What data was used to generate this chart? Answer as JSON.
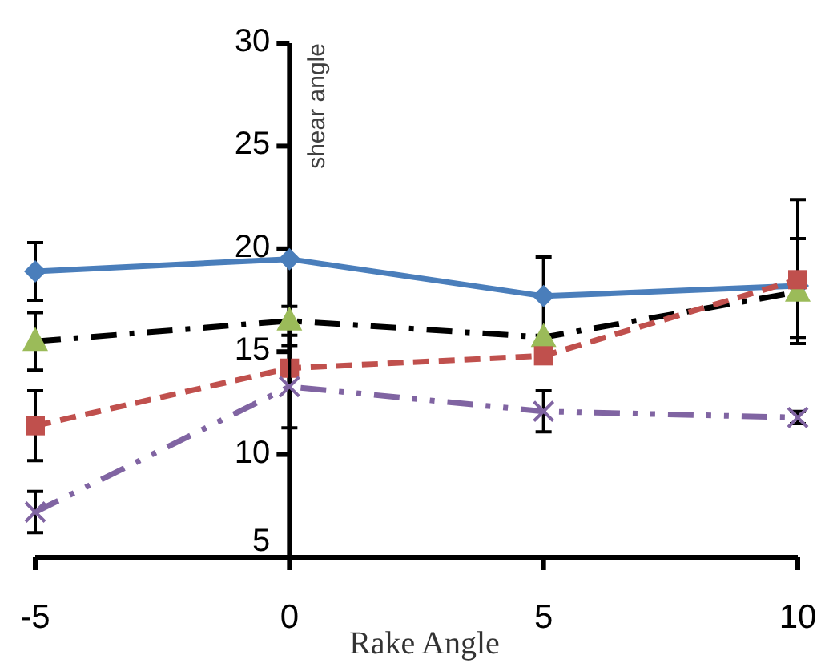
{
  "chart_data": {
    "type": "line",
    "xlabel": "Rake Angle",
    "ylabel": "shear angle",
    "x": [
      -5,
      0,
      5,
      10
    ],
    "xlim": [
      -5,
      10
    ],
    "xticks": [
      -5,
      0,
      5,
      10
    ],
    "ylim": [
      5,
      30
    ],
    "yticks": [
      5,
      10,
      15,
      20,
      25,
      30
    ],
    "series": [
      {
        "color": "#4a7ebb",
        "marker": "diamond",
        "line_style": "solid",
        "values": [
          18.9,
          19.5,
          17.7,
          18.2
        ],
        "errors": [
          1.4,
          null,
          1.9,
          [
            15.4,
            22.4
          ]
        ]
      },
      {
        "color": "#000000",
        "marker": "none",
        "line_style": "dashdot",
        "values": [
          15.5,
          16.5,
          15.7,
          17.9
        ]
      },
      {
        "type": "scatter",
        "color": "#9bbb59",
        "marker": "triangle",
        "values": [
          15.5,
          16.5,
          15.7,
          17.9
        ],
        "errors": [
          1.4,
          0.7,
          null,
          [
            15.7,
            20.5
          ]
        ]
      },
      {
        "color": "#c0504d",
        "marker": "square",
        "line_style": "dashed",
        "values": [
          11.4,
          14.2,
          14.8,
          18.5
        ],
        "errors": [
          1.7,
          null,
          null,
          null
        ]
      },
      {
        "color": "#8064a2",
        "marker": "cross",
        "line_style": "dashdotdot",
        "values": [
          7.2,
          13.3,
          12.1,
          11.8
        ],
        "errors": [
          1.0,
          2.0,
          1.0,
          0.3
        ]
      }
    ]
  }
}
